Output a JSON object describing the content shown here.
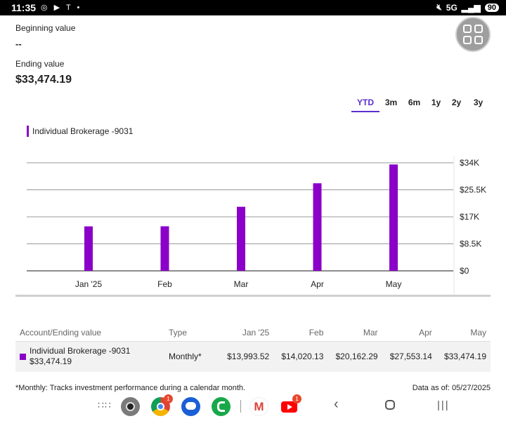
{
  "status_bar": {
    "time": "11:35",
    "notification_icons": "◎ ▶ T •",
    "network": "5G",
    "battery": "90"
  },
  "summary": {
    "beginning_label": "Beginning value",
    "beginning_value": "--",
    "ending_label": "Ending value",
    "ending_value": "$33,474.19"
  },
  "period_tabs": [
    "YTD",
    "3m",
    "6m",
    "1y",
    "2y",
    "3y"
  ],
  "active_tab": "YTD",
  "chart_data": {
    "type": "bar",
    "series": [
      {
        "name": "Individual Brokerage -9031",
        "values": [
          13993.52,
          14020.13,
          20162.29,
          27553.14,
          33474.19
        ],
        "color": "#8b00c9"
      }
    ],
    "categories": [
      "Jan '25",
      "Feb",
      "Mar",
      "Apr",
      "May"
    ],
    "y_ticks": [
      0,
      8500,
      17000,
      25500,
      34000
    ],
    "y_tick_labels": [
      "$0",
      "$8.5K",
      "$17K",
      "$25.5K",
      "$34K"
    ],
    "ylim": [
      0,
      34000
    ],
    "y_axis_side": "right",
    "grid": true
  },
  "table": {
    "headers": [
      "Account/Ending value",
      "Type",
      "Jan '25",
      "Feb",
      "Mar",
      "Apr",
      "May"
    ],
    "rows": [
      {
        "account": "Individual Brokerage -9031",
        "ending_value": "$33,474.19",
        "type": "Monthly*",
        "values": [
          "$13,993.52",
          "$14,020.13",
          "$20,162.29",
          "$27,553.14",
          "$33,474.19"
        ]
      }
    ]
  },
  "footnote": "*Monthly: Tracks investment performance during a calendar month.",
  "data_as_of": "Data as of: 05/27/2025",
  "nav_bar": {
    "apps": [
      {
        "name": "app-drawer",
        "badge": ""
      },
      {
        "name": "camera",
        "badge": ""
      },
      {
        "name": "chrome",
        "badge": "1"
      },
      {
        "name": "messages",
        "badge": ""
      },
      {
        "name": "phone",
        "badge": ""
      },
      {
        "name": "gmail",
        "badge": ""
      },
      {
        "name": "youtube",
        "badge": "1"
      }
    ],
    "buttons": [
      "back",
      "home",
      "recents"
    ]
  },
  "colors": {
    "accent": "#5a2ecf",
    "series": "#8b00c9",
    "grid": "#999999"
  }
}
